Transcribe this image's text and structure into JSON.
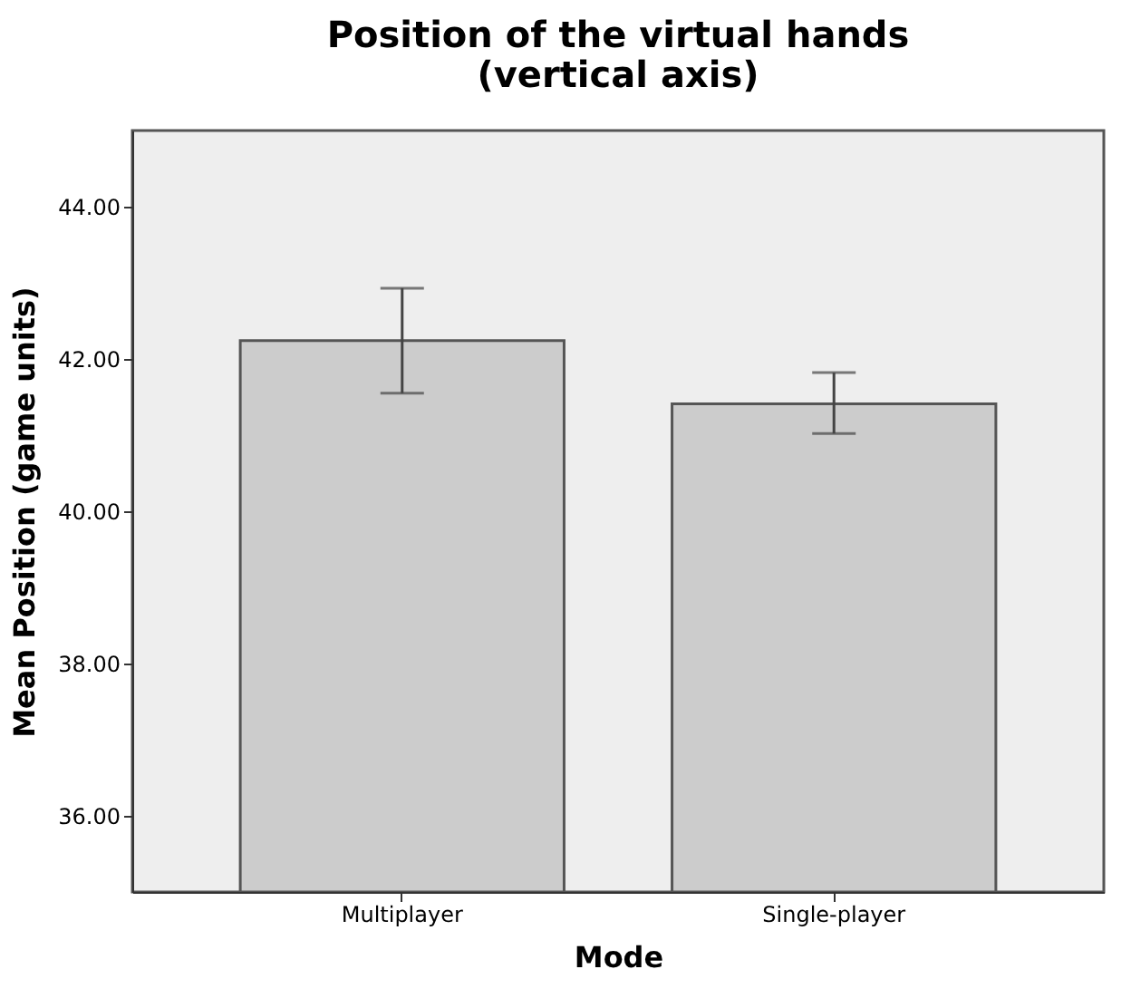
{
  "chart_data": {
    "type": "bar",
    "title": "Position of the virtual hands\n(vertical axis)",
    "xlabel": "Mode",
    "ylabel": "Mean Position (game units)",
    "categories": [
      "Multiplayer",
      "Single-player"
    ],
    "values": [
      42.24,
      41.41
    ],
    "errors": [
      [
        41.55,
        42.93
      ],
      [
        41.02,
        41.82
      ]
    ],
    "color": "#cccccc",
    "ylim": [
      35,
      45
    ],
    "yticks": [
      {
        "value": 36,
        "label": "36.00"
      },
      {
        "value": 38,
        "label": "38.00"
      },
      {
        "value": 40,
        "label": "40.00"
      },
      {
        "value": 42,
        "label": "42.00"
      },
      {
        "value": 44,
        "label": "44.00"
      }
    ],
    "grid": false
  }
}
